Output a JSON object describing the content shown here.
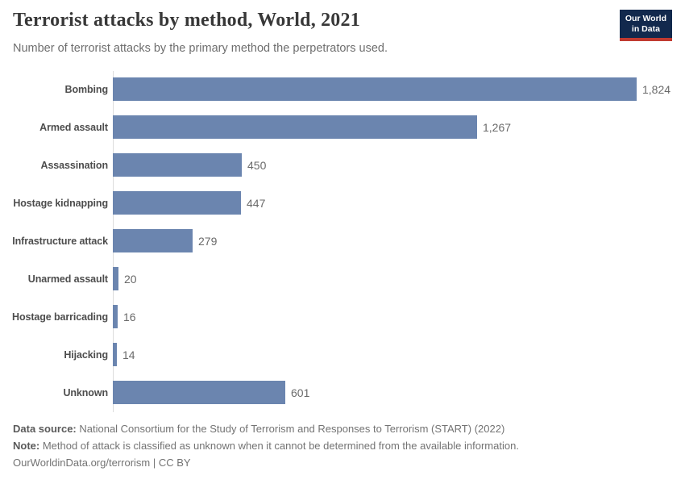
{
  "header": {
    "title": "Terrorist attacks by method, World, 2021",
    "subtitle": "Number of terrorist attacks by the primary method the perpetrators used.",
    "logo": {
      "line1": "Our World",
      "line2": "in Data"
    }
  },
  "chart_data": {
    "type": "bar",
    "orientation": "horizontal",
    "title": "Terrorist attacks by method, World, 2021",
    "xlabel": "",
    "ylabel": "",
    "categories": [
      "Bombing",
      "Armed assault",
      "Assassination",
      "Hostage kidnapping",
      "Infrastructure attack",
      "Unarmed assault",
      "Hostage barricading",
      "Hijacking",
      "Unknown"
    ],
    "values": [
      1824,
      1267,
      450,
      447,
      279,
      20,
      16,
      14,
      601
    ],
    "value_labels": [
      "1,824",
      "1,267",
      "450",
      "447",
      "279",
      "20",
      "16",
      "14",
      "601"
    ],
    "xlim": [
      0,
      1824
    ],
    "grid": false,
    "legend": false,
    "bar_color": "#6b85af"
  },
  "colors": {
    "bar": "#6b85af",
    "title": "#383838",
    "subtitle": "#6e6e6e",
    "axis_line": "#dcdcdc",
    "logo_bg": "#12294d",
    "logo_red": "#c13a30"
  },
  "footer": {
    "data_source_label": "Data source:",
    "data_source_text": " National Consortium for the Study of Terrorism and Responses to Terrorism (START) (2022)",
    "note_label": "Note:",
    "note_text": " Method of attack is classified as unknown when it cannot be determined from the available information.",
    "license_text": "OurWorldinData.org/terrorism | CC BY"
  }
}
